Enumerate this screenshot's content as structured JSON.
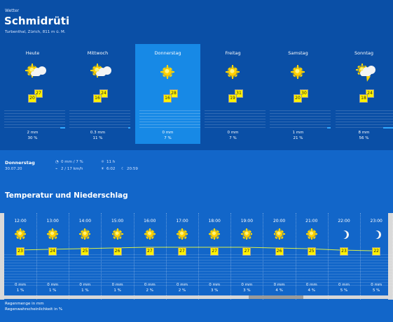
{
  "header": {
    "crumb": "Wetter",
    "title": "Schmidrüti",
    "subtitle": "Turbenthal, Zürich, 811 m ü. M."
  },
  "days": [
    {
      "name": "Heute",
      "icon": "sun-cloud",
      "tmax": "27",
      "tmin": "20",
      "mm": "2 mm",
      "pct": "30 %",
      "rain_level": 0.08,
      "selected": false
    },
    {
      "name": "Mittwoch",
      "icon": "sun-cloud",
      "tmax": "24",
      "tmin": "16",
      "mm": "0.3 mm",
      "pct": "11 %",
      "rain_level": 0.03,
      "selected": false
    },
    {
      "name": "Donnerstag",
      "icon": "sun",
      "tmax": "28",
      "tmin": "16",
      "mm": "0 mm",
      "pct": "7 %",
      "rain_level": 0.0,
      "selected": true
    },
    {
      "name": "Freitag",
      "icon": "sun",
      "tmax": "31",
      "tmin": "19",
      "mm": "0 mm",
      "pct": "7 %",
      "rain_level": 0.0,
      "selected": false
    },
    {
      "name": "Samstag",
      "icon": "sun",
      "tmax": "30",
      "tmin": "20",
      "mm": "1 mm",
      "pct": "21 %",
      "rain_level": 0.06,
      "selected": false
    },
    {
      "name": "Sonntag",
      "icon": "storm-cloud",
      "tmax": "24",
      "tmin": "18",
      "mm": "8 mm",
      "pct": "56 %",
      "rain_level": 0.22,
      "selected": false
    }
  ],
  "details": {
    "day": "Donnerstag",
    "date": "30.07.20",
    "rain": "0 mm / 7 %",
    "wind": "2 / 17 km/h",
    "sunshine": "11 h",
    "sunrise": "6:02",
    "sunset": "20:59"
  },
  "section_title": "Temperatur und Niederschlag",
  "hours": [
    {
      "time": "12:00",
      "icon": "sun",
      "temp": "23",
      "mm": "0 mm",
      "pct": "1 %"
    },
    {
      "time": "13:00",
      "icon": "sun",
      "temp": "24",
      "mm": "0 mm",
      "pct": "1 %"
    },
    {
      "time": "14:00",
      "icon": "sun",
      "temp": "25",
      "mm": "0 mm",
      "pct": "1 %"
    },
    {
      "time": "15:00",
      "icon": "sun",
      "temp": "26",
      "mm": "0 mm",
      "pct": "1 %"
    },
    {
      "time": "16:00",
      "icon": "sun",
      "temp": "27",
      "mm": "0 mm",
      "pct": "2 %"
    },
    {
      "time": "17:00",
      "icon": "sun",
      "temp": "27",
      "mm": "0 mm",
      "pct": "2 %"
    },
    {
      "time": "18:00",
      "icon": "sun",
      "temp": "27",
      "mm": "0 mm",
      "pct": "3 %"
    },
    {
      "time": "19:00",
      "icon": "sun",
      "temp": "27",
      "mm": "0 mm",
      "pct": "3 %"
    },
    {
      "time": "20:00",
      "icon": "sun",
      "temp": "26",
      "mm": "0 mm",
      "pct": "4 %"
    },
    {
      "time": "21:00",
      "icon": "sun",
      "temp": "25",
      "mm": "0 mm",
      "pct": "4 %"
    },
    {
      "time": "22:00",
      "icon": "moon",
      "temp": "23",
      "mm": "0 mm",
      "pct": "5 %"
    },
    {
      "time": "23:00",
      "icon": "moon",
      "temp": "22",
      "mm": "0 mm",
      "pct": "5 %"
    }
  ],
  "legend": {
    "line1": "Regenmenge in mm",
    "line2": "Regenwahrscheinlichkeit in %"
  },
  "colors": {
    "background": "#0a4fa6",
    "selected_day": "#1789e6",
    "temp_box": "#fff200",
    "temp_line": "#d8f04a",
    "scroll_thumb": "#9b9b9b"
  },
  "scroll": {
    "position": 0.64,
    "thumb_fraction": 0.14
  }
}
